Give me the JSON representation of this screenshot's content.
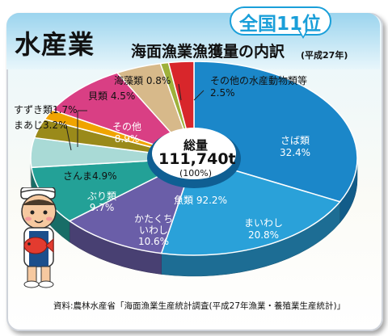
{
  "title": "水産業",
  "subtitle": "海面漁業漁獲量の内訳",
  "year_note": "(平成27年)",
  "rank_badge": "全国11位",
  "total": {
    "label": "総量",
    "value": "111,740t",
    "percent": "(100%)"
  },
  "fish_total_label": "魚類 92.2%",
  "source": "資料:農林水産省「海面漁業生産統計調査(平成27年漁業・養殖業生産統計)」",
  "chart_data": {
    "type": "pie",
    "title": "海面漁業漁獲量の内訳",
    "unit": "%",
    "slices": [
      {
        "name": "さば類",
        "value": 32.4,
        "color": "#1b87c9",
        "name_label": "さば類",
        "value_label": "32.4%"
      },
      {
        "name": "まいわし",
        "value": 20.8,
        "color": "#2aa1d9",
        "name_label": "まいわし",
        "value_label": "20.8%"
      },
      {
        "name": "かたくちいわし",
        "value": 10.6,
        "color": "#6a5ea8",
        "name_label": "かたくち\nいわし",
        "value_label": "10.6%"
      },
      {
        "name": "ぶり類",
        "value": 9.7,
        "color": "#23a197",
        "name_label": "ぶり類",
        "value_label": "9.7%"
      },
      {
        "name": "さんま",
        "value": 4.9,
        "color": "#a9dad6",
        "name_label": "さんま",
        "value_label": "4.9%"
      },
      {
        "name": "まあじ",
        "value": 3.2,
        "color": "#9a8a1a",
        "name_label": "まあじ",
        "value_label": "3.2%"
      },
      {
        "name": "すずき類",
        "value": 1.7,
        "color": "#f0a400",
        "name_label": "すずき類",
        "value_label": "1.7%"
      },
      {
        "name": "その他",
        "value": 8.9,
        "color": "#d93f84",
        "name_label": "その他",
        "value_label": "8.9%"
      },
      {
        "name": "貝類",
        "value": 4.5,
        "color": "#d7b98a",
        "name_label": "貝類",
        "value_label": "4.5%"
      },
      {
        "name": "海藻類",
        "value": 0.8,
        "color": "#9eb13a",
        "name_label": "海藻類",
        "value_label": "0.8%"
      },
      {
        "name": "その他の水産動物類等",
        "value": 2.5,
        "color": "#d8262b",
        "name_label": "その他の水産動物類等",
        "value_label": "2.5%"
      }
    ],
    "start_angle_deg": -90,
    "direction": "clockwise"
  },
  "mascot": "fisherman-mascot-icon"
}
